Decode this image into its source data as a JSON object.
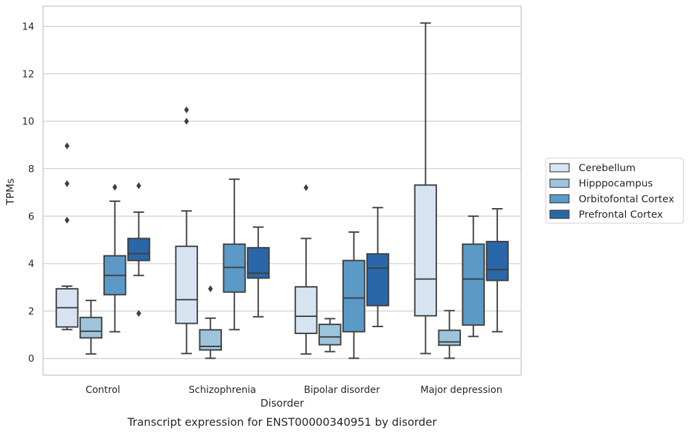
{
  "chart_data": {
    "type": "box",
    "caption": "Transcript expression for ENST00000340951 by disorder",
    "xlabel": "Disorder",
    "ylabel": "TPMs",
    "ylim": [
      -0.7,
      14.85
    ],
    "yticks": [
      0,
      2,
      4,
      6,
      8,
      10,
      12,
      14
    ],
    "grid": true,
    "legend_position": "right",
    "categories": [
      "Control",
      "Schizophrenia",
      "Bipolar disorder",
      "Major depression"
    ],
    "series": [
      {
        "name": "Cerebellum",
        "color": "#d6e4f2",
        "boxes": [
          {
            "whislo": 1.22,
            "q1": 1.33,
            "med": 2.14,
            "q3": 2.94,
            "whishi": 3.05,
            "fliers": [
              5.83,
              7.37,
              8.96
            ]
          },
          {
            "whislo": 0.21,
            "q1": 1.48,
            "med": 2.48,
            "q3": 4.73,
            "whishi": 6.22,
            "fliers": [
              10.0,
              10.48
            ]
          },
          {
            "whislo": 0.19,
            "q1": 1.06,
            "med": 1.78,
            "q3": 3.02,
            "whishi": 5.06,
            "fliers": [
              7.2
            ]
          },
          {
            "whislo": 0.21,
            "q1": 1.8,
            "med": 3.35,
            "q3": 7.31,
            "whishi": 14.14,
            "fliers": []
          }
        ]
      },
      {
        "name": "Hipppocampus",
        "color": "#9ec4dd",
        "boxes": [
          {
            "whislo": 0.19,
            "q1": 0.87,
            "med": 1.15,
            "q3": 1.73,
            "whishi": 2.45,
            "fliers": []
          },
          {
            "whislo": 0.01,
            "q1": 0.36,
            "med": 0.51,
            "q3": 1.21,
            "whishi": 1.7,
            "fliers": [
              2.94
            ]
          },
          {
            "whislo": 0.29,
            "q1": 0.58,
            "med": 0.91,
            "q3": 1.44,
            "whishi": 1.68,
            "fliers": []
          },
          {
            "whislo": 0.01,
            "q1": 0.56,
            "med": 0.7,
            "q3": 1.19,
            "whishi": 2.02,
            "fliers": []
          }
        ]
      },
      {
        "name": "Orbitofontal Cortex",
        "color": "#5b9ac6",
        "boxes": [
          {
            "whislo": 1.13,
            "q1": 2.69,
            "med": 3.5,
            "q3": 4.33,
            "whishi": 6.63,
            "fliers": [
              7.22
            ]
          },
          {
            "whislo": 1.22,
            "q1": 2.8,
            "med": 3.84,
            "q3": 4.82,
            "whishi": 7.56,
            "fliers": []
          },
          {
            "whislo": 0.01,
            "q1": 1.13,
            "med": 2.55,
            "q3": 4.13,
            "whishi": 5.33,
            "fliers": []
          },
          {
            "whislo": 0.93,
            "q1": 1.41,
            "med": 3.35,
            "q3": 4.82,
            "whishi": 6.0,
            "fliers": []
          }
        ]
      },
      {
        "name": "Prefrontal Cortex",
        "color": "#2a67a8",
        "boxes": [
          {
            "whislo": 3.5,
            "q1": 4.13,
            "med": 4.42,
            "q3": 5.06,
            "whishi": 6.17,
            "fliers": [
              1.9,
              7.28
            ]
          },
          {
            "whislo": 1.76,
            "q1": 3.39,
            "med": 3.6,
            "q3": 4.67,
            "whishi": 5.54,
            "fliers": []
          },
          {
            "whislo": 1.35,
            "q1": 2.23,
            "med": 3.81,
            "q3": 4.41,
            "whishi": 6.36,
            "fliers": []
          },
          {
            "whislo": 1.13,
            "q1": 3.29,
            "med": 3.75,
            "q3": 4.93,
            "whishi": 6.31,
            "fliers": []
          }
        ]
      }
    ]
  }
}
